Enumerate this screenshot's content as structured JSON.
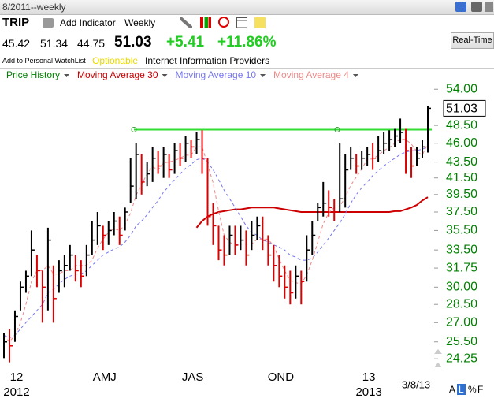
{
  "toolbar": {
    "period": "8/2011--weekly",
    "symbol": "TRIP",
    "add_indicator": "Add Indicator",
    "interval": "Weekly",
    "realtime": "Real-Time"
  },
  "quote": {
    "open": "45.42",
    "high": "51.34",
    "low": "44.75",
    "last": "51.03",
    "change": "+5.41",
    "change_pct": "+11.86%"
  },
  "info": {
    "watchlist": "Add to Personal WatchList",
    "optionable": "Optionable",
    "industry": "Internet Information Providers"
  },
  "footer": {
    "date": "3/8/13",
    "modes": [
      "A",
      "L",
      "%",
      "F"
    ]
  },
  "chart_data": {
    "type": "ohlc",
    "log_scale": true,
    "ylim": [
      23.7,
      55.7
    ],
    "yticks": [
      {
        "value": 24.25,
        "label": "24.25"
      },
      {
        "value": 25.5,
        "label": "25.50"
      },
      {
        "value": 27,
        "label": "27.00"
      },
      {
        "value": 28.5,
        "label": "28.50"
      },
      {
        "value": 30,
        "label": "30.00"
      },
      {
        "value": 31.75,
        "label": "31.75"
      },
      {
        "value": 33.5,
        "label": "33.50"
      },
      {
        "value": 35.5,
        "label": "35.50"
      },
      {
        "value": 37.5,
        "label": "37.50"
      },
      {
        "value": 39.5,
        "label": "39.50"
      },
      {
        "value": 41.5,
        "label": "41.50"
      },
      {
        "value": 43.5,
        "label": "43.50"
      },
      {
        "value": 46,
        "label": "46.00"
      },
      {
        "value": 48.5,
        "label": "48.50"
      },
      {
        "value": 54,
        "label": "54.00"
      }
    ],
    "last_price": 51.03,
    "xticks": [
      {
        "value": 1,
        "label": "12"
      },
      {
        "value": 17,
        "label": "AMJ"
      },
      {
        "value": 33,
        "label": "JAS"
      },
      {
        "value": 49,
        "label": "OND"
      },
      {
        "value": 65,
        "label": "13"
      }
    ],
    "year_labels": [
      {
        "value": 1,
        "label": "2012"
      },
      {
        "value": 65,
        "label": "2013"
      }
    ],
    "trendline": {
      "value": 47.9,
      "color": "#33dd33"
    },
    "series": [
      {
        "name": "Price History",
        "color": "#008000",
        "up_color": "#000000",
        "down_color": "#dd0000",
        "high": [
          26.2,
          26.5,
          28,
          30.5,
          31.5,
          35.5,
          33,
          31.5,
          35.8,
          32,
          32.5,
          33,
          34,
          33,
          32.5,
          34,
          36.5,
          37.5,
          36,
          36.5,
          37.5,
          37,
          38,
          44,
          46,
          44.5,
          43.5,
          45.5,
          45,
          45.5,
          44.5,
          46,
          46,
          47,
          46.5,
          47.5,
          47.8,
          44,
          38.5,
          36,
          35,
          36,
          36,
          36,
          35.5,
          36.5,
          37,
          37,
          35,
          34,
          33,
          32,
          31.5,
          32,
          31.5,
          35,
          36.5,
          38.5,
          41,
          40,
          39,
          46,
          44.5,
          45.5,
          44.5,
          45,
          45.5,
          46,
          47,
          47.5,
          47.8,
          48,
          49.5,
          48,
          45.5,
          45.5,
          46.5,
          51.34
        ],
        "low": [
          24.3,
          24,
          25.5,
          28,
          29.5,
          31,
          30,
          27,
          28,
          27,
          29.5,
          30,
          31.5,
          30.5,
          30,
          31,
          33,
          34,
          33.5,
          34,
          35,
          34,
          35.5,
          38.5,
          39,
          39.5,
          40.5,
          41,
          42,
          41.5,
          41.5,
          42,
          43,
          43.5,
          44,
          44.5,
          42,
          36,
          34,
          32.5,
          32,
          33,
          33,
          33.5,
          32,
          33.5,
          34.5,
          33.5,
          32,
          30.5,
          30,
          29,
          28.5,
          29,
          28.5,
          30.5,
          33,
          36.5,
          37,
          37,
          36.5,
          37.5,
          38,
          42.5,
          42,
          42.5,
          43,
          42.5,
          43.5,
          44.5,
          45,
          45.5,
          46,
          42,
          41.5,
          43,
          44,
          44.75
        ],
        "close": [
          25.5,
          25.2,
          27.5,
          30,
          31,
          33.5,
          31.5,
          30,
          34.5,
          29,
          31.5,
          32,
          33,
          31.5,
          31,
          33,
          34.5,
          36,
          35,
          35.5,
          36.5,
          35,
          37.5,
          40.5,
          44.5,
          41,
          42,
          44,
          43,
          44.5,
          42.5,
          45,
          44,
          46,
          45.5,
          46.5,
          44,
          37,
          36,
          33.5,
          33,
          35,
          34,
          34.5,
          33,
          35,
          36,
          34.5,
          33,
          32,
          31,
          30,
          29.5,
          31,
          30.5,
          33.5,
          35,
          38,
          38.5,
          38,
          37.5,
          39,
          42.5,
          44,
          43,
          44,
          44.5,
          44,
          45,
          46,
          46.5,
          47,
          47.5,
          45,
          43,
          44,
          45.5,
          51.03
        ]
      },
      {
        "name": "Moving Average 30",
        "color": "#cc0000",
        "line_style": "solid",
        "values": [
          null,
          null,
          null,
          null,
          null,
          null,
          null,
          null,
          null,
          null,
          null,
          null,
          null,
          null,
          null,
          null,
          null,
          null,
          null,
          null,
          null,
          null,
          null,
          null,
          null,
          null,
          null,
          null,
          null,
          null,
          null,
          null,
          null,
          null,
          null,
          35.8,
          36.5,
          37,
          37.3,
          37.5,
          37.6,
          37.7,
          37.8,
          37.8,
          37.9,
          38,
          38,
          38,
          38,
          38,
          37.9,
          37.8,
          37.7,
          37.6,
          37.5,
          37.5,
          37.5,
          37.5,
          37.5,
          37.5,
          37.5,
          37.5,
          37.5,
          37.5,
          37.5,
          37.5,
          37.5,
          37.5,
          37.5,
          37.5,
          37.5,
          37.6,
          37.6,
          37.8,
          38,
          38.3,
          38.8,
          39.2
        ]
      },
      {
        "name": "Moving Average 10",
        "color": "#7777ee",
        "line_style": "dashed",
        "values": [
          26,
          25.8,
          26,
          26.5,
          27,
          27.5,
          28,
          28.5,
          29.5,
          29.8,
          30.3,
          30.7,
          31,
          31.2,
          31.2,
          31.5,
          32,
          32.5,
          33,
          33.3,
          33.6,
          33.8,
          34.3,
          35,
          36,
          36.5,
          37.2,
          38,
          38.8,
          39.8,
          40.5,
          41.3,
          42,
          42.7,
          43.2,
          43.8,
          44,
          43.5,
          42.5,
          41.3,
          40,
          39,
          38,
          37,
          36,
          35.3,
          35,
          34.5,
          34.3,
          34,
          33.8,
          33.5,
          33,
          32.8,
          32.5,
          32.5,
          32.7,
          33.3,
          34,
          34.7,
          35.5,
          36.3,
          37.3,
          38.5,
          39.5,
          40.3,
          41,
          41.8,
          42.4,
          43,
          43.5,
          44,
          44.5,
          44.8,
          45,
          45,
          45.2,
          45.5
        ]
      },
      {
        "name": "Moving Average 4",
        "color": "#ee8888",
        "line_style": "dashed",
        "values": [
          26,
          25.5,
          26,
          27,
          28.5,
          30.5,
          31.5,
          31.5,
          32,
          31.2,
          31.2,
          31.5,
          31.5,
          32,
          32,
          32,
          32.5,
          33.7,
          34.6,
          35.3,
          35.7,
          35.5,
          36.1,
          37.4,
          39.4,
          40.7,
          42,
          42.9,
          42.5,
          43.4,
          43.5,
          43.7,
          44,
          44.4,
          44.4,
          45.5,
          45.5,
          43.2,
          40.9,
          37.6,
          35,
          34.3,
          33.9,
          34.1,
          34.1,
          34.1,
          34.6,
          34.6,
          34.6,
          33.9,
          32.6,
          31.5,
          30.6,
          30.4,
          30.3,
          31.1,
          32.5,
          34.3,
          36.2,
          37.4,
          38,
          38.1,
          39.2,
          40.6,
          41.6,
          42.6,
          43.9,
          43.9,
          44.4,
          45,
          45.4,
          46,
          46.6,
          46.5,
          45.9,
          44.9,
          44.4,
          46
        ]
      }
    ]
  }
}
